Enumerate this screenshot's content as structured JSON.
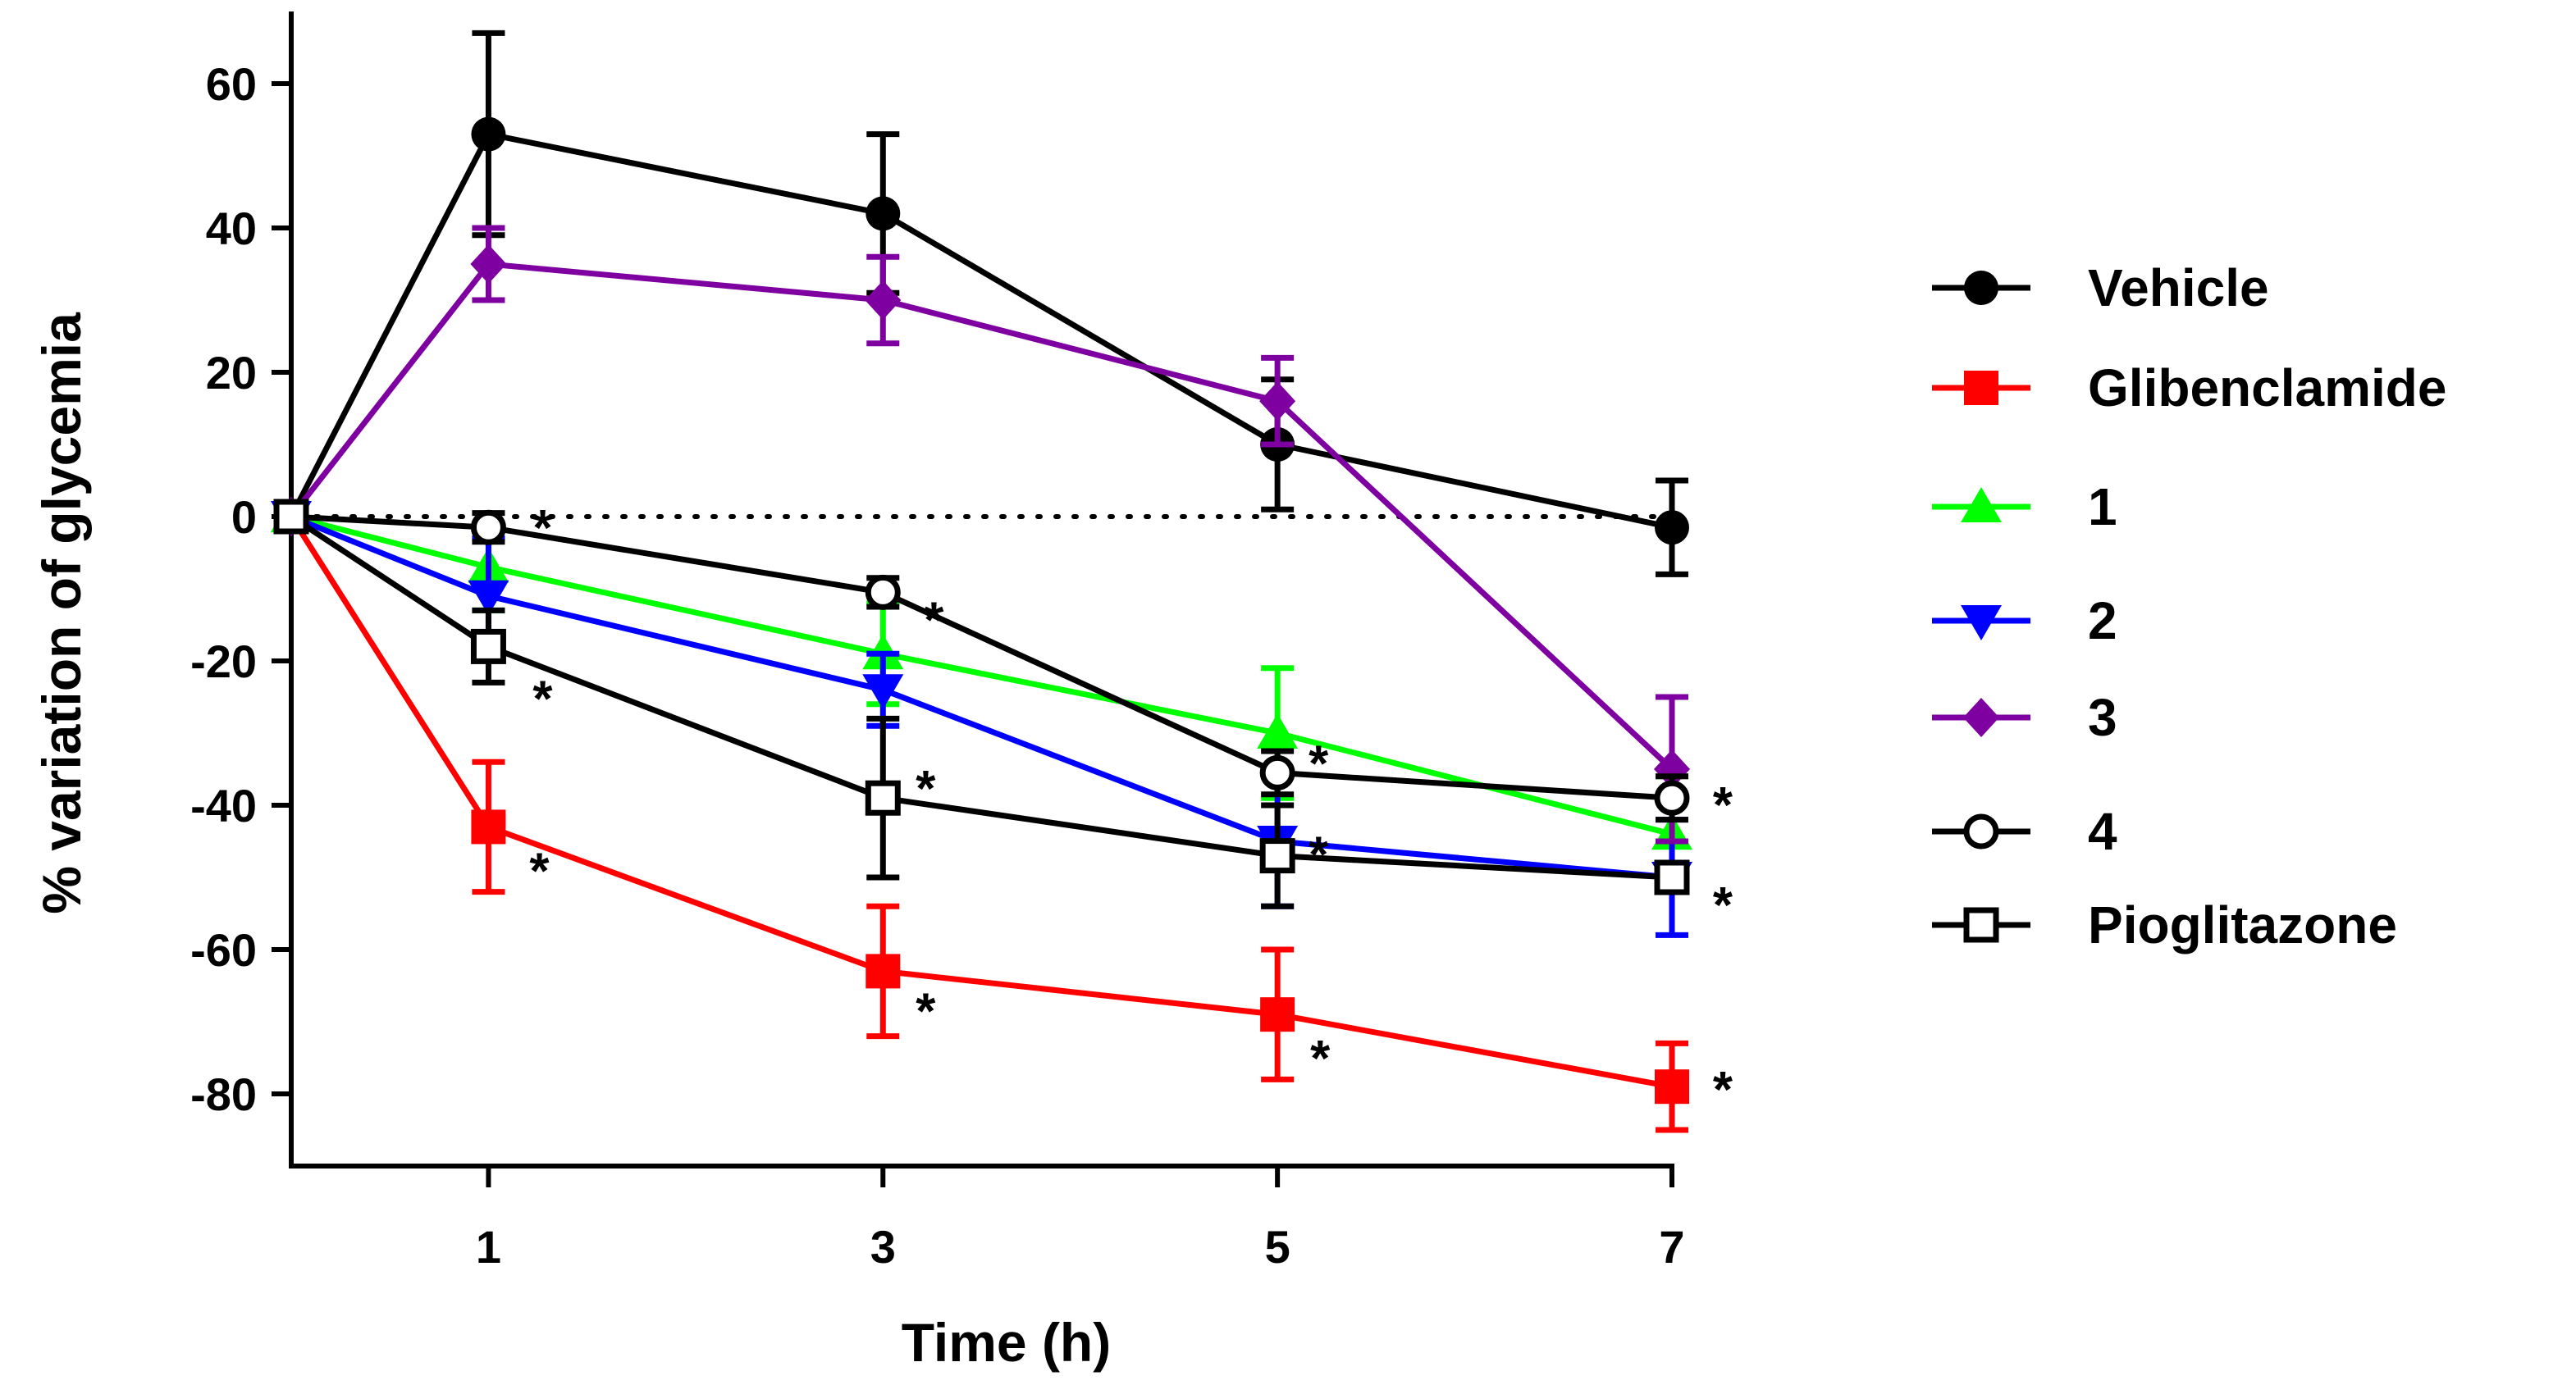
{
  "chart_data": {
    "type": "line",
    "title": "",
    "xlabel": "Time (h)",
    "ylabel": "% variation of glycemia",
    "x": [
      0,
      1,
      3,
      5,
      7
    ],
    "x_tick_labels": [
      "1",
      "3",
      "5",
      "7"
    ],
    "x_ticks": [
      1,
      3,
      5,
      7
    ],
    "xlim": [
      0,
      7
    ],
    "y_ticks": [
      60,
      40,
      20,
      0,
      -20,
      -40,
      -60,
      -80
    ],
    "y_tick_labels": [
      "60",
      "40",
      "20",
      "0",
      "-20",
      "-40",
      "-60",
      "-80"
    ],
    "ylim": [
      -90,
      70
    ],
    "grid": false,
    "reference_line": 0,
    "legend_position": "right",
    "significance_marker": "*",
    "series": [
      {
        "name": "Vehicle",
        "color": "#000000",
        "marker": "circle-filled",
        "values": [
          0,
          53,
          42,
          10,
          -1.5
        ],
        "errors": [
          0,
          14,
          11,
          9,
          6.5
        ],
        "significant": [
          false,
          false,
          false,
          false,
          false
        ]
      },
      {
        "name": "Glibenclamide",
        "color": "#ff0000",
        "marker": "square-filled",
        "values": [
          0,
          -43,
          -63,
          -69,
          -79
        ],
        "errors": [
          0,
          9,
          9,
          9,
          6
        ],
        "significant": [
          false,
          true,
          true,
          true,
          true
        ]
      },
      {
        "name": "1",
        "color": "#00ff00",
        "marker": "triangle-up",
        "values": [
          0,
          -7,
          -19,
          -30,
          -44
        ],
        "errors": [
          0,
          6,
          7,
          9,
          8
        ],
        "significant": [
          false,
          false,
          false,
          false,
          false
        ]
      },
      {
        "name": "2",
        "color": "#0000ff",
        "marker": "triangle-down",
        "values": [
          0,
          -11,
          -24,
          -45,
          -50
        ],
        "errors": [
          0,
          8,
          5,
          9,
          8
        ],
        "significant": [
          false,
          false,
          false,
          false,
          false
        ]
      },
      {
        "name": "3",
        "color": "#7f00a0",
        "marker": "diamond",
        "values": [
          0,
          35,
          30,
          16,
          -35
        ],
        "errors": [
          0,
          5,
          6,
          6,
          10
        ],
        "significant": [
          false,
          false,
          false,
          false,
          false
        ]
      },
      {
        "name": "4",
        "color": "#000000",
        "marker": "circle-open",
        "values": [
          0,
          -1.5,
          -10.5,
          -35.5,
          -39
        ],
        "errors": [
          0,
          2,
          2,
          3,
          3
        ],
        "significant": [
          false,
          true,
          true,
          true,
          true
        ]
      },
      {
        "name": "Pioglitazone",
        "color": "#000000",
        "marker": "square-open",
        "values": [
          0,
          -18,
          -39,
          -47,
          -50
        ],
        "errors": [
          0,
          5,
          11,
          7,
          2
        ],
        "significant": [
          false,
          true,
          true,
          true,
          true
        ]
      }
    ]
  }
}
